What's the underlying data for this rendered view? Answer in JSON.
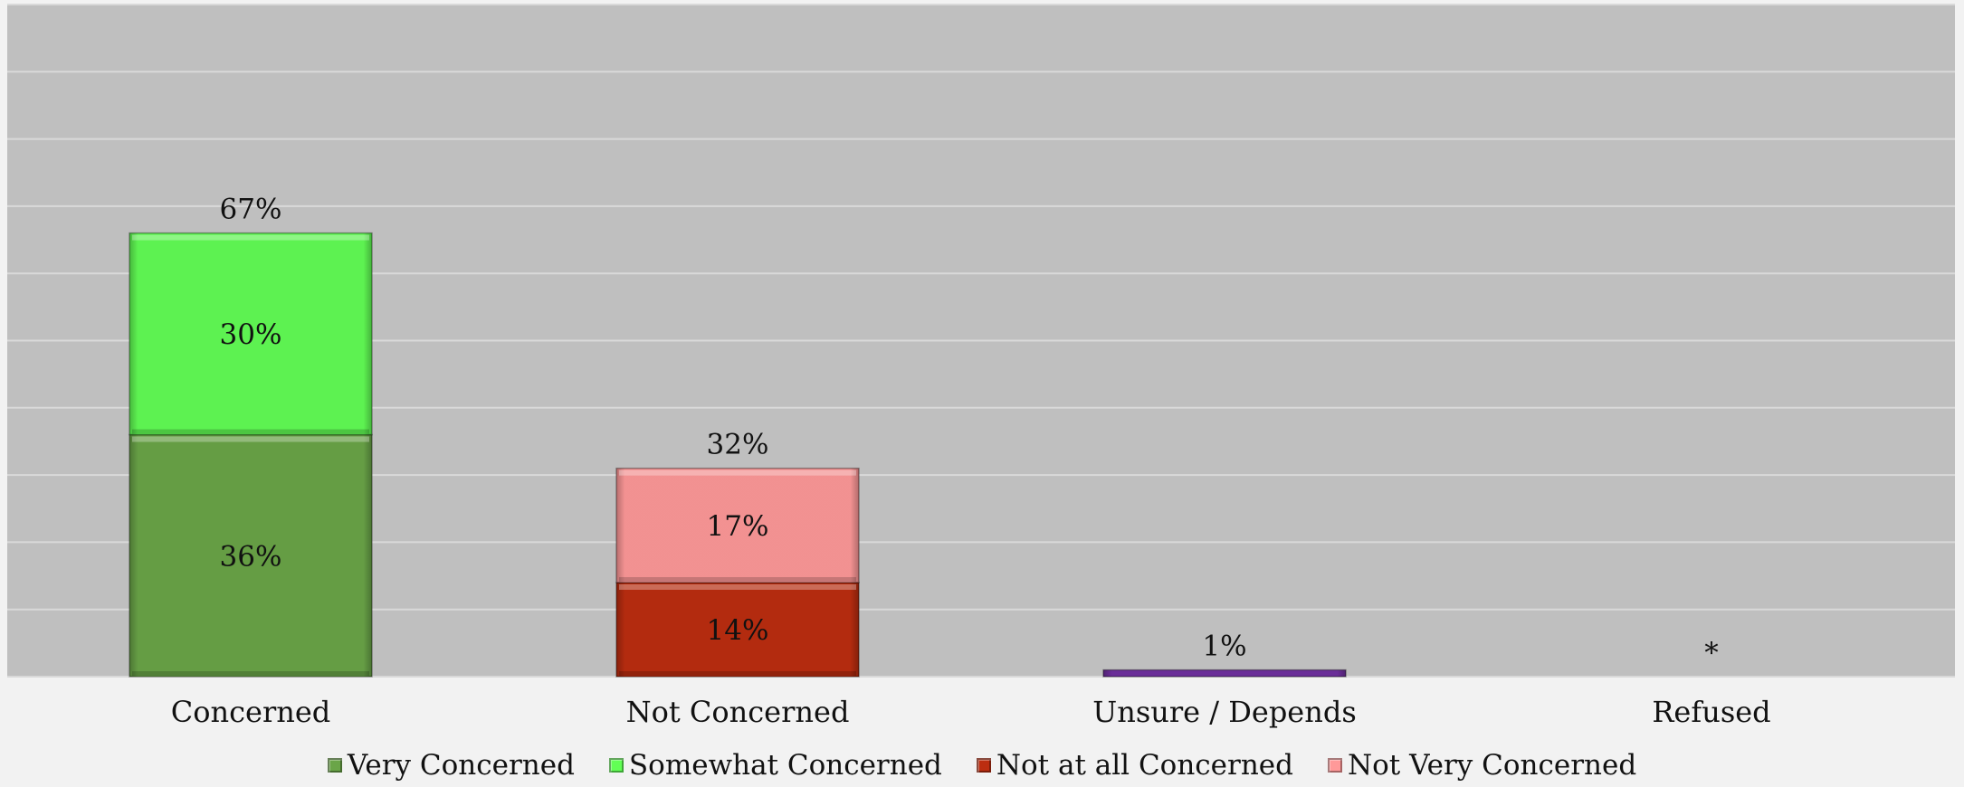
{
  "chart_data": {
    "type": "bar",
    "stacked": true,
    "categories": [
      "Concerned",
      "Not Concerned",
      "Unsure / Depends",
      "Refused"
    ],
    "series": [
      {
        "name": "Very Concerned",
        "color": "#6aa548",
        "values": [
          36,
          0,
          0,
          0
        ],
        "labels": [
          "36%",
          "",
          "",
          ""
        ]
      },
      {
        "name": "Somewhat Concerned",
        "color": "#62ff55",
        "values": [
          30,
          0,
          0,
          0
        ],
        "labels": [
          "30%",
          "",
          "",
          ""
        ]
      },
      {
        "name": "Not at all Concerned",
        "color": "#bc2d10",
        "values": [
          0,
          14,
          0,
          0
        ],
        "labels": [
          "",
          "14%",
          "",
          ""
        ]
      },
      {
        "name": "Not Very Concerned",
        "color": "#ff9999",
        "values": [
          0,
          17,
          0,
          0
        ],
        "labels": [
          "",
          "17%",
          "",
          ""
        ]
      },
      {
        "name": "Unsure / Depends",
        "color": "#7030a0",
        "values": [
          0,
          0,
          1,
          0
        ],
        "labels": [
          "",
          "",
          "",
          ""
        ]
      }
    ],
    "totals": [
      "67%",
      "32%",
      "1%",
      "*"
    ],
    "ylim": [
      0,
      100
    ],
    "grid": true,
    "legend": "bottom",
    "legend_entries": [
      {
        "name": "Very Concerned",
        "color": "#6aa548"
      },
      {
        "name": "Somewhat Concerned",
        "color": "#62ff55"
      },
      {
        "name": "Not at all Concerned",
        "color": "#bc2d10"
      },
      {
        "name": "Not Very Concerned",
        "color": "#ff9999"
      }
    ],
    "plot_background": "#bfbfbf",
    "page_background": "#f2f2f2"
  }
}
